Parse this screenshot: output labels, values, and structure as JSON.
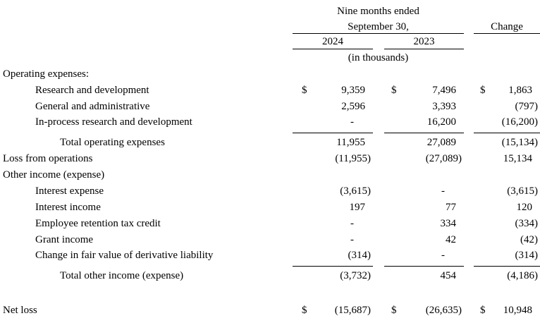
{
  "header": {
    "period_line1": "Nine months ended",
    "period_line2": "September 30,",
    "change": "Change",
    "year_left": "2024",
    "year_right": "2023",
    "units": "(in thousands)"
  },
  "rows": [
    {
      "label": "Operating expenses:",
      "d1": "",
      "v1": "",
      "d2": "",
      "v2": "",
      "d3": "",
      "v3": ""
    },
    {
      "label": "Research and development",
      "d1": "$",
      "v1": "9,359",
      "d2": "$",
      "v2": "7,496",
      "d3": "$",
      "v3": "1,863"
    },
    {
      "label": "General and administrative",
      "d1": "",
      "v1": "2,596",
      "d2": "",
      "v2": "3,393",
      "d3": "",
      "v3": "(797)"
    },
    {
      "label": "In-process research and development",
      "d1": "",
      "v1": "-",
      "d2": "",
      "v2": "16,200",
      "d3": "",
      "v3": "(16,200)"
    },
    {
      "label": "Total operating expenses",
      "d1": "",
      "v1": "11,955",
      "d2": "",
      "v2": "27,089",
      "d3": "",
      "v3": "(15,134)"
    },
    {
      "label": "Loss from operations",
      "d1": "",
      "v1": "(11,955)",
      "d2": "",
      "v2": "(27,089)",
      "d3": "",
      "v3": "15,134"
    },
    {
      "label": "Other income (expense)",
      "d1": "",
      "v1": "",
      "d2": "",
      "v2": "",
      "d3": "",
      "v3": ""
    },
    {
      "label": "Interest expense",
      "d1": "",
      "v1": "(3,615)",
      "d2": "",
      "v2": "-",
      "d3": "",
      "v3": "(3,615)"
    },
    {
      "label": "Interest income",
      "d1": "",
      "v1": "197",
      "d2": "",
      "v2": "77",
      "d3": "",
      "v3": "120"
    },
    {
      "label": "Employee retention tax credit",
      "d1": "",
      "v1": "-",
      "d2": "",
      "v2": "334",
      "d3": "",
      "v3": "(334)"
    },
    {
      "label": "Grant income",
      "d1": "",
      "v1": "-",
      "d2": "",
      "v2": "42",
      "d3": "",
      "v3": "(42)"
    },
    {
      "label": "Change in fair value of derivative liability",
      "d1": "",
      "v1": "(314)",
      "d2": "",
      "v2": "-",
      "d3": "",
      "v3": "(314)"
    },
    {
      "label": "Total other income (expense)",
      "d1": "",
      "v1": "(3,732)",
      "d2": "",
      "v2": "454",
      "d3": "",
      "v3": "(4,186)"
    },
    {
      "label": "",
      "d1": "",
      "v1": "",
      "d2": "",
      "v2": "",
      "d3": "",
      "v3": ""
    },
    {
      "label": "Net loss",
      "d1": "$",
      "v1": "(15,687)",
      "d2": "$",
      "v2": "(26,635)",
      "d3": "$",
      "v3": "10,948"
    }
  ]
}
